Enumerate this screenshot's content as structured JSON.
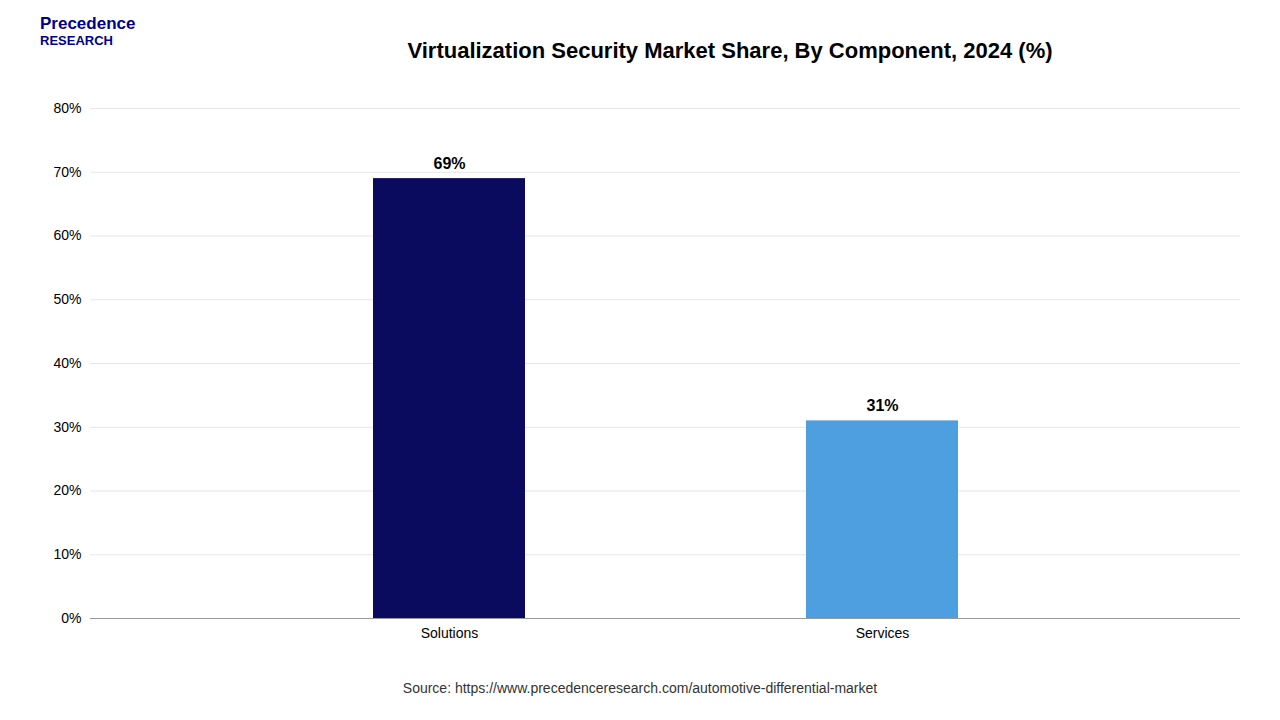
{
  "chart_data": {
    "type": "bar",
    "title": "Virtualization Security Market Share, By Component, 2024 (%)",
    "categories": [
      "Solutions",
      "Services"
    ],
    "values": [
      69,
      31
    ],
    "value_labels": [
      "69%",
      "31%"
    ],
    "colors": [
      "#0a0a5e",
      "#4e9fe0"
    ],
    "ylim": [
      0,
      80
    ],
    "yticks": [
      {
        "value": 0,
        "label": "0%"
      },
      {
        "value": 10,
        "label": "10%"
      },
      {
        "value": 20,
        "label": "20%"
      },
      {
        "value": 30,
        "label": "30%"
      },
      {
        "value": 40,
        "label": "40%"
      },
      {
        "value": 50,
        "label": "50%"
      },
      {
        "value": 60,
        "label": "60%"
      },
      {
        "value": 70,
        "label": "70%"
      },
      {
        "value": 80,
        "label": "80%"
      }
    ],
    "grid": true,
    "data_labels": true,
    "annotations": [
      "Precedence",
      "RESEARCH",
      "Source: https://www.precedenceresearch.com/automotive-differential-market"
    ]
  }
}
